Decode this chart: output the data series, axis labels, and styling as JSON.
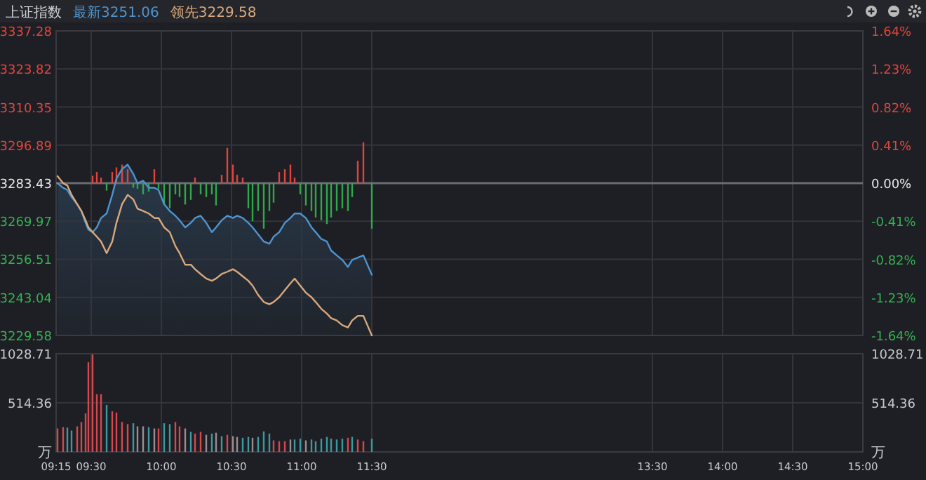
{
  "chart_data": [
    {
      "type": "line",
      "title": "上证指数",
      "legend": "top left",
      "grid": true,
      "tick_labels": "y",
      "x": [
        9.26,
        9.3,
        9.33,
        9.36,
        9.4,
        9.43,
        9.46,
        9.48,
        9.51,
        9.54,
        9.57,
        9.61,
        9.65,
        9.68,
        9.72,
        9.76,
        9.8,
        9.83,
        9.87,
        9.91,
        9.95,
        9.98,
        10.02,
        10.06,
        10.1,
        10.13,
        10.17,
        10.21,
        10.24,
        10.28,
        10.32,
        10.36,
        10.39,
        10.43,
        10.47,
        10.51,
        10.54,
        10.58,
        10.62,
        10.65,
        10.69,
        10.73,
        10.77,
        10.8,
        10.84,
        10.88,
        10.92,
        10.95,
        10.99,
        11.03,
        11.07,
        11.1,
        11.14,
        11.18,
        11.21,
        11.25,
        11.29,
        11.33,
        11.36,
        11.4,
        11.44,
        11.5
      ],
      "xlim": [
        9.25,
        15
      ],
      "xticks": [
        {
          "value": 9.25,
          "label": null
        },
        {
          "value": 9.5,
          "label": null
        },
        {
          "value": 10,
          "label": null
        },
        {
          "value": 10.5,
          "label": null
        },
        {
          "value": 11,
          "label": null
        },
        {
          "value": 11.5,
          "label": null
        },
        {
          "value": 13.5,
          "label": null
        },
        {
          "value": 14,
          "label": null
        },
        {
          "value": 14.5,
          "label": null
        },
        {
          "value": 15,
          "label": null
        }
      ],
      "ylim": [
        3229.58,
        3337.28
      ],
      "yticks": [
        3229.58,
        3243.04,
        3256.51,
        3269.97,
        3283.43,
        3296.89,
        3310.35,
        3323.82,
        3337.28
      ],
      "y2lim": [
        -1.64,
        1.64
      ],
      "y2ticks": [
        {
          "value": -1.64,
          "label": "-1.64%"
        },
        {
          "value": -1.23,
          "label": "-1.23%"
        },
        {
          "value": -0.82,
          "label": "-0.82%"
        },
        {
          "value": -0.41,
          "label": "-0.41%"
        },
        {
          "value": 0,
          "label": "0.00%"
        },
        {
          "value": 0.41,
          "label": "0.41%"
        },
        {
          "value": 0.82,
          "label": "0.82%"
        },
        {
          "value": 1.23,
          "label": "1.23%"
        },
        {
          "value": 1.64,
          "label": "1.64%"
        }
      ],
      "ref_lines": [
        {
          "axis": "y",
          "value": 3283.43,
          "color": "#6b6c72"
        }
      ],
      "series": [
        {
          "type": "bar",
          "axis": "y2",
          "values": [
            null,
            null,
            null,
            null,
            null,
            null,
            null,
            null,
            0.08,
            0.12,
            0.06,
            -0.08,
            0.12,
            0.17,
            0.2,
            0.15,
            -0.05,
            -0.06,
            -0.12,
            -0.09,
            0.15,
            -0.06,
            -0.23,
            -0.27,
            -0.12,
            -0.15,
            -0.23,
            -0.18,
            0.06,
            -0.12,
            -0.15,
            -0.12,
            -0.24,
            0.09,
            0.38,
            0.2,
            0.09,
            0.06,
            -0.27,
            -0.41,
            -0.3,
            -0.49,
            -0.3,
            -0.21,
            0.12,
            0.15,
            0.2,
            0.06,
            -0.12,
            -0.24,
            -0.3,
            -0.37,
            -0.4,
            -0.44,
            -0.37,
            -0.3,
            -0.27,
            -0.3,
            -0.15,
            0.24,
            0.44,
            -0.49
          ],
          "colors": [
            null,
            null,
            null,
            null,
            null,
            null,
            null,
            null,
            "#e0443c",
            "#e0443c",
            "#e0443c",
            "#2ea84a",
            "#e0443c",
            "#e0443c",
            "#e0443c",
            "#e0443c",
            "#2ea84a",
            "#2ea84a",
            "#2ea84a",
            "#2ea84a",
            "#e0443c",
            "#2ea84a",
            "#2ea84a",
            "#2ea84a",
            "#2ea84a",
            "#2ea84a",
            "#2ea84a",
            "#2ea84a",
            "#e0443c",
            "#2ea84a",
            "#2ea84a",
            "#2ea84a",
            "#2ea84a",
            "#e0443c",
            "#e0443c",
            "#e0443c",
            "#e0443c",
            "#e0443c",
            "#2ea84a",
            "#2ea84a",
            "#2ea84a",
            "#2ea84a",
            "#2ea84a",
            "#2ea84a",
            "#e0443c",
            "#e0443c",
            "#e0443c",
            "#e0443c",
            "#2ea84a",
            "#2ea84a",
            "#2ea84a",
            "#2ea84a",
            "#2ea84a",
            "#2ea84a",
            "#2ea84a",
            "#2ea84a",
            "#2ea84a",
            "#2ea84a",
            "#2ea84a",
            "#e0443c",
            "#e0443c",
            "#2ea84a"
          ]
        },
        {
          "type": "area",
          "name": "最新3251.06",
          "color": "#4d94d0",
          "values": [
            3283.4,
            3281.8,
            3281.0,
            3278.5,
            3276.0,
            3273.6,
            3269.4,
            3267.0,
            3266.1,
            3267.8,
            3271.1,
            3272.7,
            3279.3,
            3285.1,
            3288.4,
            3290.0,
            3286.7,
            3283.4,
            3284.3,
            3281.8,
            3281.8,
            3281.0,
            3276.0,
            3273.6,
            3271.9,
            3270.3,
            3267.8,
            3269.4,
            3271.1,
            3271.9,
            3269.4,
            3266.1,
            3267.8,
            3270.3,
            3271.9,
            3271.1,
            3271.9,
            3271.1,
            3269.4,
            3267.8,
            3265.3,
            3262.8,
            3262.0,
            3264.5,
            3266.1,
            3269.4,
            3271.1,
            3272.7,
            3272.7,
            3271.1,
            3267.8,
            3266.1,
            3263.7,
            3262.8,
            3259.6,
            3257.9,
            3256.3,
            3253.8,
            3256.3,
            3257.1,
            3257.9,
            3251.06
          ]
        },
        {
          "name": "领先3229.58",
          "color": "#d9a87c",
          "values": [
            3285.9,
            3283.4,
            3282.6,
            3279.3,
            3276.0,
            3273.6,
            3270.3,
            3267.8,
            3266.1,
            3264.5,
            3262.8,
            3258.7,
            3262.8,
            3269.4,
            3276.0,
            3279.3,
            3277.7,
            3274.4,
            3273.6,
            3272.7,
            3271.1,
            3271.1,
            3267.8,
            3266.1,
            3261.2,
            3258.7,
            3254.6,
            3254.6,
            3253.0,
            3251.3,
            3249.7,
            3248.9,
            3249.7,
            3251.3,
            3252.1,
            3253.0,
            3252.1,
            3250.5,
            3248.9,
            3247.2,
            3243.9,
            3241.4,
            3240.6,
            3241.4,
            3243.1,
            3245.6,
            3248.0,
            3249.7,
            3247.2,
            3244.7,
            3243.1,
            3241.4,
            3239.0,
            3237.3,
            3235.7,
            3234.9,
            3233.2,
            3232.4,
            3234.9,
            3236.5,
            3236.5,
            3229.58
          ]
        }
      ]
    },
    {
      "type": "bar",
      "grid": true,
      "x": [
        9.26,
        9.3,
        9.33,
        9.36,
        9.4,
        9.43,
        9.46,
        9.48,
        9.51,
        9.54,
        9.57,
        9.61,
        9.65,
        9.68,
        9.72,
        9.76,
        9.8,
        9.83,
        9.87,
        9.91,
        9.95,
        9.98,
        10.02,
        10.06,
        10.1,
        10.13,
        10.17,
        10.21,
        10.24,
        10.28,
        10.32,
        10.36,
        10.39,
        10.43,
        10.47,
        10.51,
        10.54,
        10.58,
        10.62,
        10.65,
        10.69,
        10.73,
        10.77,
        10.8,
        10.84,
        10.88,
        10.92,
        10.95,
        10.99,
        11.03,
        11.07,
        11.1,
        11.14,
        11.18,
        11.21,
        11.25,
        11.29,
        11.33,
        11.36,
        11.4,
        11.44,
        11.5
      ],
      "values": [
        246,
        259,
        255,
        224,
        268,
        313,
        403,
        939,
        1020,
        604,
        604,
        492,
        425,
        412,
        313,
        291,
        300,
        268,
        268,
        259,
        246,
        246,
        300,
        291,
        313,
        268,
        246,
        210,
        192,
        210,
        179,
        192,
        201,
        165,
        179,
        165,
        157,
        148,
        157,
        148,
        157,
        215,
        192,
        121,
        112,
        112,
        130,
        130,
        139,
        121,
        130,
        112,
        139,
        157,
        139,
        130,
        139,
        148,
        157,
        130,
        112,
        139
      ],
      "colors": [
        "#d8474d",
        "#d8474d",
        "#3a9aa0",
        "#3a9aa0",
        "#d8474d",
        "#d8474d",
        "#d8474d",
        "#d8474d",
        "#d8474d",
        "#d8474d",
        "#d8474d",
        "#3a9aa0",
        "#d8474d",
        "#d8474d",
        "#d8474d",
        "#d8474d",
        "#3a9aa0",
        "#9a8c92",
        "#9a8c92",
        "#3a9aa0",
        "#9a8c92",
        "#d8474d",
        "#3a9aa0",
        "#3a9aa0",
        "#d8474d",
        "#d8474d",
        "#9a8c92",
        "#3a9aa0",
        "#d8474d",
        "#d8474d",
        "#9a8c92",
        "#3a9aa0",
        "#9a8c92",
        "#3a9aa0",
        "#d8474d",
        "#9a8c92",
        "#9a8c92",
        "#3a9aa0",
        "#3a9aa0",
        "#9a8c92",
        "#3a9aa0",
        "#3a9aa0",
        "#3a9aa0",
        "#d8474d",
        "#d8474d",
        "#d8474d",
        "#9a8c92",
        "#3a9aa0",
        "#3a9aa0",
        "#9a8c92",
        "#3a9aa0",
        "#3a9aa0",
        "#3a9aa0",
        "#3a9aa0",
        "#3a9aa0",
        "#3a9aa0",
        "#3a9aa0",
        "#d8474d",
        "#3a9aa0",
        "#d8474d",
        "#d8474d",
        "#3a9aa0"
      ],
      "xlim": [
        9.25,
        15
      ],
      "xticks": [
        {
          "value": 9.25,
          "label": "09:15"
        },
        {
          "value": 9.5,
          "label": "09:30"
        },
        {
          "value": 10,
          "label": "10:00"
        },
        {
          "value": 10.5,
          "label": "10:30"
        },
        {
          "value": 11,
          "label": "11:00"
        },
        {
          "value": 11.5,
          "label": "11:30"
        },
        {
          "value": 13.5,
          "label": "13:30"
        },
        {
          "value": 14,
          "label": "14:00"
        },
        {
          "value": 14.5,
          "label": "14:30"
        },
        {
          "value": 15,
          "label": "15:00"
        }
      ],
      "ylim": [
        0,
        1028.71
      ],
      "yticks": [
        {
          "value": 0,
          "label": "万"
        },
        514.36,
        1028.71
      ],
      "y2lim": [
        0,
        1028.71
      ],
      "y2ticks": [
        {
          "value": 0,
          "label": "万"
        },
        514.36,
        1028.71
      ]
    }
  ]
}
